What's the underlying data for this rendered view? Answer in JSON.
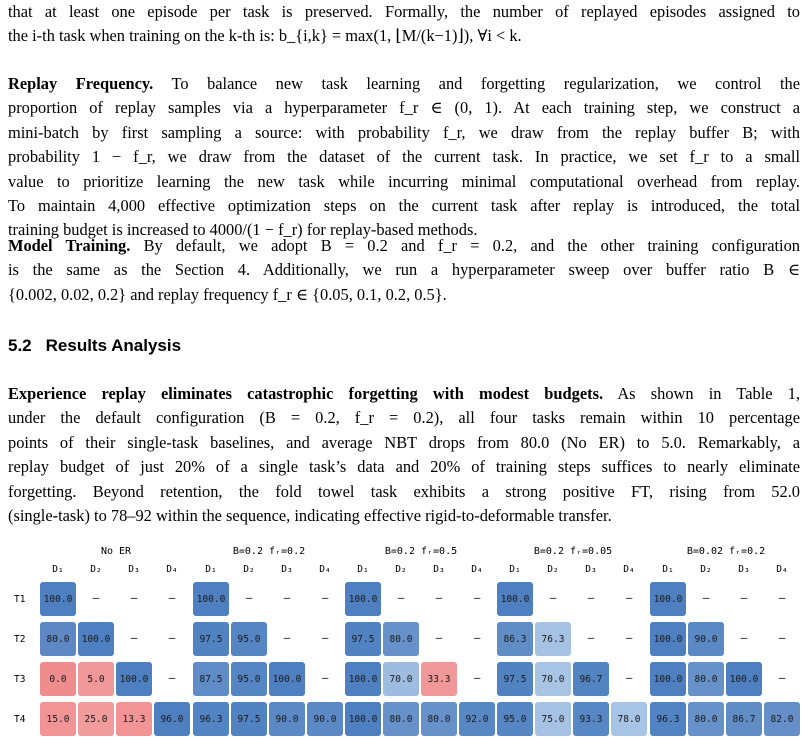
{
  "para1": {
    "line1": "that at least one episode per task is preserved. Formally, the number of replayed episodes assigned to",
    "line2": "the i-th task when training on the k-th is: b_{i,k} = max(1, ⌊M/(k−1)⌋), ∀i < k."
  },
  "para2": {
    "title": "Replay Frequency.",
    "lines": [
      "To balance new task learning and forgetting regularization, we control the",
      "proportion of replay samples via a hyperparameter f_r ∈ (0, 1). At each training step, we construct a",
      "mini-batch by first sampling a source: with probability f_r, we draw from the replay buffer B; with",
      "probability 1 − f_r, we draw from the dataset of the current task. In practice, we set f_r to a small",
      "value to prioritize learning the new task while incurring minimal computational overhead from replay.",
      "To maintain 4,000 effective optimization steps on the current task after replay is introduced, the total",
      "training budget is increased to 4000/(1 − f_r) for replay-based methods."
    ]
  },
  "para3": {
    "title": "Model Training.",
    "lines": [
      "By default, we adopt B = 0.2 and f_r = 0.2, and the other training configuration",
      "is the same as the Section 4. Additionally, we run a hyperparameter sweep over buffer ratio B ∈",
      "{0.002, 0.02, 0.2} and replay frequency f_r ∈ {0.05, 0.1, 0.2, 0.5}."
    ]
  },
  "section": {
    "number": "5.2",
    "title": "Results Analysis"
  },
  "para4": {
    "title": "Experience replay eliminates catastrophic forgetting with modest budgets.",
    "lines": [
      "As shown in Table 1,",
      "under the default configuration (B = 0.2, f_r = 0.2), all four tasks remain within 10 percentage",
      "points of their single-task baselines, and average NBT drops from 80.0 (No ER) to 5.0. Remarkably, a",
      "replay budget of just 20% of a single task’s data and 20% of training steps suffices to nearly eliminate",
      "forgetting. Beyond retention, the fold towel task exhibits a strong positive FT, rising from 52.0",
      "(single-task) to 78–92 within the sequence, indicating effective rigid-to-deformable transfer."
    ]
  },
  "figure": {
    "col_labels": [
      "D₁",
      "D₂",
      "D₃",
      "D₄"
    ],
    "row_labels": [
      "T1",
      "T2",
      "T3",
      "T4"
    ],
    "panels": [
      {
        "title": "No ER",
        "values": [
          [
            "100.0",
            "–",
            "–",
            "–"
          ],
          [
            "80.0",
            "100.0",
            "–",
            "–"
          ],
          [
            "0.0",
            "5.0",
            "100.0",
            "–"
          ],
          [
            "15.0",
            "25.0",
            "13.3",
            "96.0"
          ]
        ],
        "colors": [
          [
            "#4e7fc0",
            null,
            null,
            null
          ],
          [
            "#5d88c4",
            "#4e7fc0",
            null,
            null
          ],
          [
            "#ef8c8d",
            "#f0979a",
            "#4e7fc0",
            null
          ],
          [
            "#f29496",
            "#f29b9d",
            "#f29496",
            "#4e7fc0"
          ]
        ]
      },
      {
        "title": "B=0.2 f_r=0.2",
        "values": [
          [
            "100.0",
            "–",
            "–",
            "–"
          ],
          [
            "97.5",
            "95.0",
            "–",
            "–"
          ],
          [
            "87.5",
            "95.0",
            "100.0",
            "–"
          ],
          [
            "96.3",
            "97.5",
            "90.0",
            "90.0"
          ]
        ],
        "colors": [
          [
            "#4e7fc0",
            null,
            null,
            null
          ],
          [
            "#5183c2",
            "#5585c3",
            null,
            null
          ],
          [
            "#5f8cc6",
            "#5585c3",
            "#4e7fc0",
            null
          ],
          [
            "#5283c2",
            "#5183c2",
            "#5b89c5",
            "#5b89c5"
          ]
        ]
      },
      {
        "title": "B=0.2 f_r=0.5",
        "values": [
          [
            "100.0",
            "–",
            "–",
            "–"
          ],
          [
            "97.5",
            "80.0",
            "–",
            "–"
          ],
          [
            "100.0",
            "70.0",
            "33.3",
            "–"
          ],
          [
            "100.0",
            "80.0",
            "80.0",
            "92.0"
          ]
        ],
        "colors": [
          [
            "#4e7fc0",
            null,
            null,
            null
          ],
          [
            "#5183c2",
            "#6791c9",
            null,
            null
          ],
          [
            "#4e7fc0",
            "#9ebbe0",
            "#f0979a",
            null
          ],
          [
            "#4e7fc0",
            "#6791c9",
            "#6791c9",
            "#5888c4"
          ]
        ]
      },
      {
        "title": "B=0.2 f_r=0.05",
        "values": [
          [
            "100.0",
            "–",
            "–",
            "–"
          ],
          [
            "86.3",
            "76.3",
            "–",
            "–"
          ],
          [
            "97.5",
            "70.0",
            "96.7",
            "–"
          ],
          [
            "95.0",
            "75.0",
            "93.3",
            "78.0"
          ]
        ],
        "colors": [
          [
            "#4e7fc0",
            null,
            null,
            null
          ],
          [
            "#608dc6",
            "#a5c2e4",
            null,
            null
          ],
          [
            "#5183c2",
            "#a8c4e5",
            "#5284c2",
            null
          ],
          [
            "#5585c3",
            "#a5c2e4",
            "#5787c4",
            "#a7c3e5"
          ]
        ]
      },
      {
        "title": "B=0.02 f_r=0.2",
        "values": [
          [
            "100.0",
            "–",
            "–",
            "–"
          ],
          [
            "100.0",
            "90.0",
            "–",
            "–"
          ],
          [
            "100.0",
            "80.0",
            "100.0",
            "–"
          ],
          [
            "96.3",
            "80.0",
            "86.7",
            "82.0"
          ]
        ],
        "colors": [
          [
            "#4e7fc0",
            null,
            null,
            null
          ],
          [
            "#4e7fc0",
            "#5b89c5",
            null,
            null
          ],
          [
            "#4e7fc0",
            "#6791c9",
            "#4e7fc0",
            null
          ],
          [
            "#5283c2",
            "#6791c9",
            "#608dc6",
            "#648fc8"
          ]
        ]
      }
    ]
  }
}
